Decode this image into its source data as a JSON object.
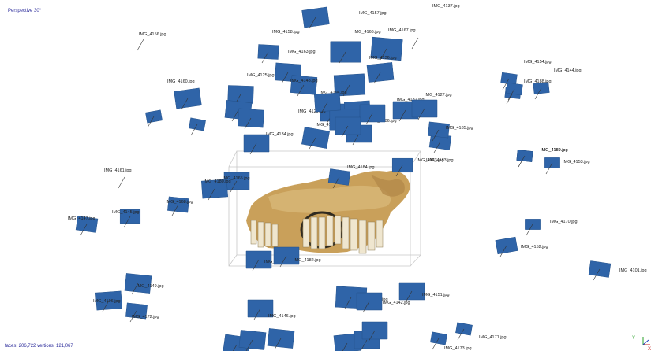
{
  "viewport": {
    "projection_label": "Perspective 30°",
    "stats_label": "faces: 206,722  vertices: 121,067",
    "axis": {
      "y_label": "Y",
      "x_label": "X"
    },
    "colors": {
      "camera": "#2f64a8",
      "background": "#ffffff",
      "bbox": "#c8c8c8"
    }
  },
  "cameras": [
    "IMG_4157.jpg",
    "IMG_4158.jpg",
    "IMG_4166.jpg",
    "IMG_4167.jpg",
    "IMG_4156.jpg",
    "IMG_4163.jpg",
    "IMG_4136.jpg",
    "IMG_4137.jpg",
    "IMG_4125.jpg",
    "IMG_4160.jpg",
    "IMG_4148.jpg",
    "IMG_4194.jpg",
    "IMG_4132.jpg",
    "IMG_4127.jpg",
    "IMG_4154.jpg",
    "IMG_4144.jpg",
    "IMG_4188.jpg",
    "IMG_4189.jpg",
    "IMG_4183.jpg",
    "IMG_4129.jpg",
    "IMG_4131.jpg",
    "IMG_4130.jpg",
    "IMG_4186.jpg",
    "IMG_4185.jpg",
    "IMG_4134.jpg",
    "IMG_4184.jpg",
    "IMG_4183.jpg",
    "IMG_4169.jpg",
    "IMG_4153.jpg",
    "IMG_4161.jpg",
    "IMG_4165.jpg",
    "IMG_4180.jpg",
    "IMG_4168.jpg",
    "IMG_4147.jpg",
    "IMG_4145.jpg",
    "IMG_4170.jpg",
    "IMG_4152.jpg",
    "IMG_4101.jpg",
    "IMG_4110.jpg",
    "IMG_4182.jpg",
    "IMG_4149.jpg",
    "IMG_4196.jpg",
    "IMG_4172.jpg",
    "IMG_4146.jpg",
    "IMG_4150.jpg",
    "IMG_4142.jpg",
    "IMG_4151.jpg",
    "IMG_4171.jpg",
    "IMG_4173.jpg"
  ]
}
